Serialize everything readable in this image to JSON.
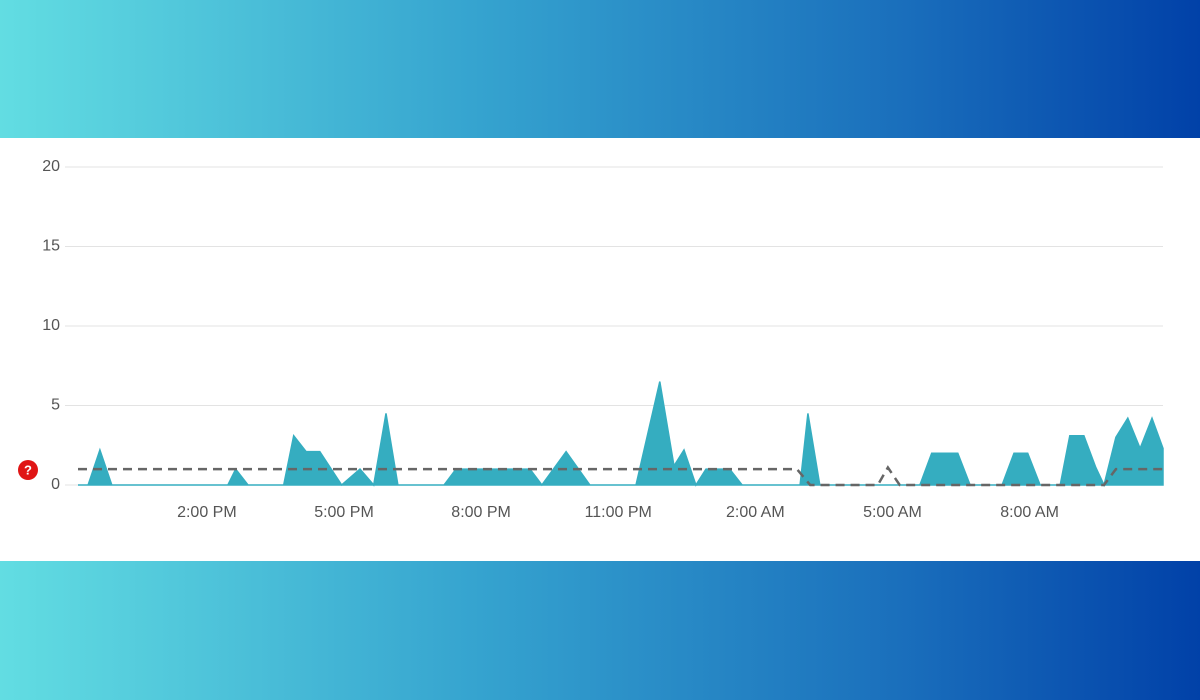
{
  "chart_data": {
    "type": "area",
    "xlim": [
      11.18,
      34.92
    ],
    "xticks": [
      {
        "value": 14,
        "label": "2:00 PM"
      },
      {
        "value": 17,
        "label": "5:00 PM"
      },
      {
        "value": 20,
        "label": "8:00 PM"
      },
      {
        "value": 23,
        "label": "11:00 PM"
      },
      {
        "value": 26,
        "label": "2:00 AM"
      },
      {
        "value": 29,
        "label": "5:00 AM"
      },
      {
        "value": 32,
        "label": "8:00 AM"
      }
    ],
    "ylim": [
      0,
      20
    ],
    "yticks": [
      0,
      5,
      10,
      15,
      20
    ],
    "grid": true,
    "series": [
      {
        "type": "area",
        "color": "#35adc0",
        "x": [
          11.18,
          11.4,
          11.66,
          11.92,
          14.46,
          14.63,
          14.9,
          15.68,
          15.9,
          16.17,
          16.47,
          16.95,
          17.35,
          17.65,
          17.92,
          18.18,
          19.19,
          19.45,
          21.07,
          21.33,
          21.86,
          22.38,
          23.39,
          23.91,
          24.22,
          24.44,
          24.7,
          24.92,
          25.44,
          25.71,
          26.98,
          27.15,
          27.41,
          29.6,
          29.86,
          30.43,
          30.7,
          31.4,
          31.66,
          31.96,
          32.23,
          32.67,
          32.88,
          33.19,
          33.45,
          33.63,
          33.89,
          34.15,
          34.42,
          34.68,
          34.92
        ],
        "values": [
          0,
          0,
          2.2,
          0,
          0,
          1,
          0,
          0,
          3.1,
          2.1,
          2.1,
          0,
          1,
          0,
          4.5,
          0,
          0,
          1,
          1,
          0,
          2.1,
          0,
          0,
          6.5,
          1.2,
          2.2,
          0,
          1,
          1,
          0,
          0,
          4.5,
          0,
          0,
          2,
          2,
          0,
          0,
          2,
          2,
          0,
          0,
          3.1,
          3.1,
          1.1,
          0,
          3,
          4.2,
          2.3,
          4.2,
          2.3
        ]
      },
      {
        "type": "dashed-line",
        "color": "#666666",
        "x": [
          11.18,
          26.91,
          27.2,
          28.68,
          28.9,
          29.16,
          33.63,
          33.89,
          34.92
        ],
        "values": [
          1,
          1,
          0,
          0,
          1.1,
          0,
          0,
          1,
          1
        ]
      }
    ]
  }
}
